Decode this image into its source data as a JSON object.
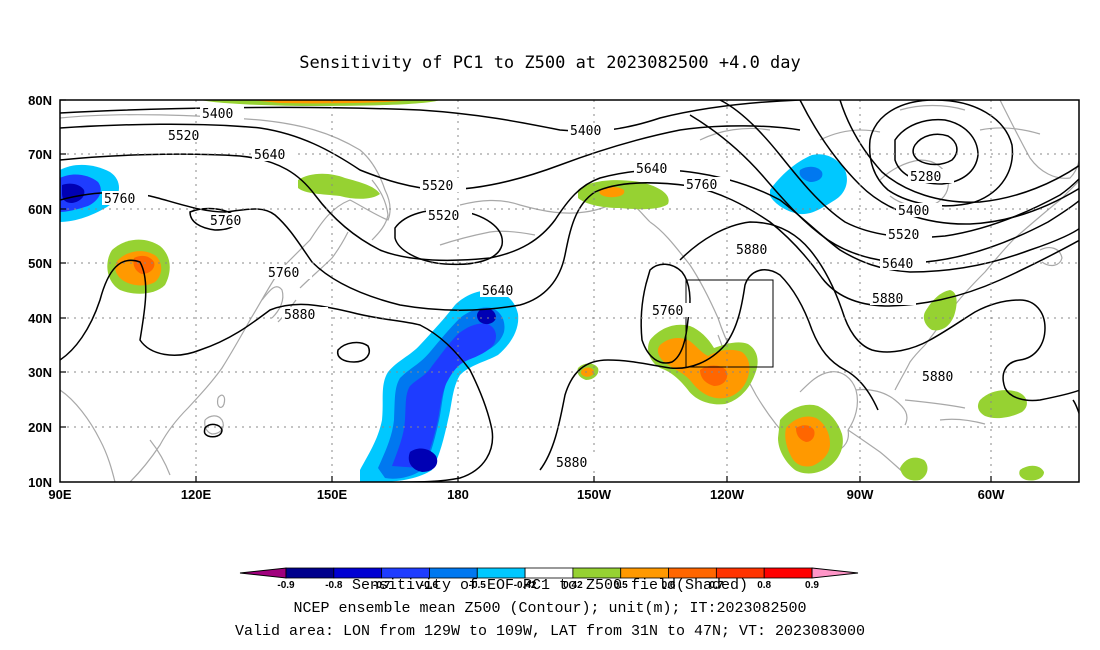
{
  "title": "Sensitivity of PC1 to Z500 at 2023082500 +4.0 day",
  "axes": {
    "lat_labels": [
      "80N",
      "70N",
      "60N",
      "50N",
      "40N",
      "30N",
      "20N",
      "10N"
    ],
    "lon_labels": [
      "90E",
      "120E",
      "150E",
      "180",
      "150W",
      "120W",
      "90W",
      "60W"
    ]
  },
  "contour_labels": [
    "5400",
    "5400",
    "5520",
    "5520",
    "5640",
    "5640",
    "5520",
    "5760",
    "5760",
    "5280",
    "5400",
    "5520",
    "5640",
    "5760",
    "5880",
    "5760",
    "5880",
    "5640",
    "5760",
    "5880",
    "5880",
    "5880"
  ],
  "shading_colors": {
    "strong_negative": "#0000b4",
    "negative": "#1e3cff",
    "weak_negative": "#0096ff",
    "faint_negative": "#00c8ff",
    "weak_positive": "#96d232",
    "positive": "#ff9900",
    "strong_positive": "#ff3300"
  },
  "colorbar": {
    "tick_labels": [
      "-0.9",
      "-0.8",
      "-0.7",
      "-0.6",
      "-0.5",
      "-0.42",
      "0.42",
      "0.5",
      "0.6",
      "0.7",
      "0.8",
      "0.9"
    ],
    "colors": [
      "#a0007d",
      "#00008c",
      "#0000d2",
      "#1e3cff",
      "#0078f0",
      "#00c8ff",
      "#ffffff",
      "#96d232",
      "#ff9900",
      "#ff6600",
      "#ff3300",
      "#ff0000",
      "#ff96c8"
    ]
  },
  "captions": [
    "Sensitivity of EOF PC1 to Z500 field(Shaded)",
    "NCEP ensemble mean Z500 (Contour); unit(m); IT:2023082500",
    "Valid area: LON from 129W to 109W, LAT from 31N to 47N; VT: 2023083000"
  ]
}
